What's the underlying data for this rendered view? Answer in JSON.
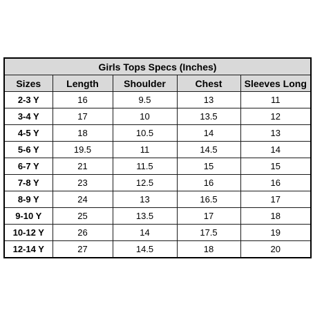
{
  "table": {
    "title": "Girls Tops Specs (Inches)",
    "headers": [
      "Sizes",
      "Length",
      "Shoulder",
      "Chest",
      "Sleeves Long"
    ],
    "rows": [
      [
        "2-3 Y",
        "16",
        "9.5",
        "13",
        "11"
      ],
      [
        "3-4 Y",
        "17",
        "10",
        "13.5",
        "12"
      ],
      [
        "4-5 Y",
        "18",
        "10.5",
        "14",
        "13"
      ],
      [
        "5-6 Y",
        "19.5",
        "11",
        "14.5",
        "14"
      ],
      [
        "6-7 Y",
        "21",
        "11.5",
        "15",
        "15"
      ],
      [
        "7-8 Y",
        "23",
        "12.5",
        "16",
        "16"
      ],
      [
        "8-9 Y",
        "24",
        "13",
        "16.5",
        "17"
      ],
      [
        "9-10 Y",
        "25",
        "13.5",
        "17",
        "18"
      ],
      [
        "10-12 Y",
        "26",
        "14",
        "17.5",
        "19"
      ],
      [
        "12-14 Y",
        "27",
        "14.5",
        "18",
        "20"
      ]
    ]
  },
  "colors": {
    "header_bg": "#d9d9d9",
    "border": "#1a1a1a",
    "background": "#ffffff"
  }
}
